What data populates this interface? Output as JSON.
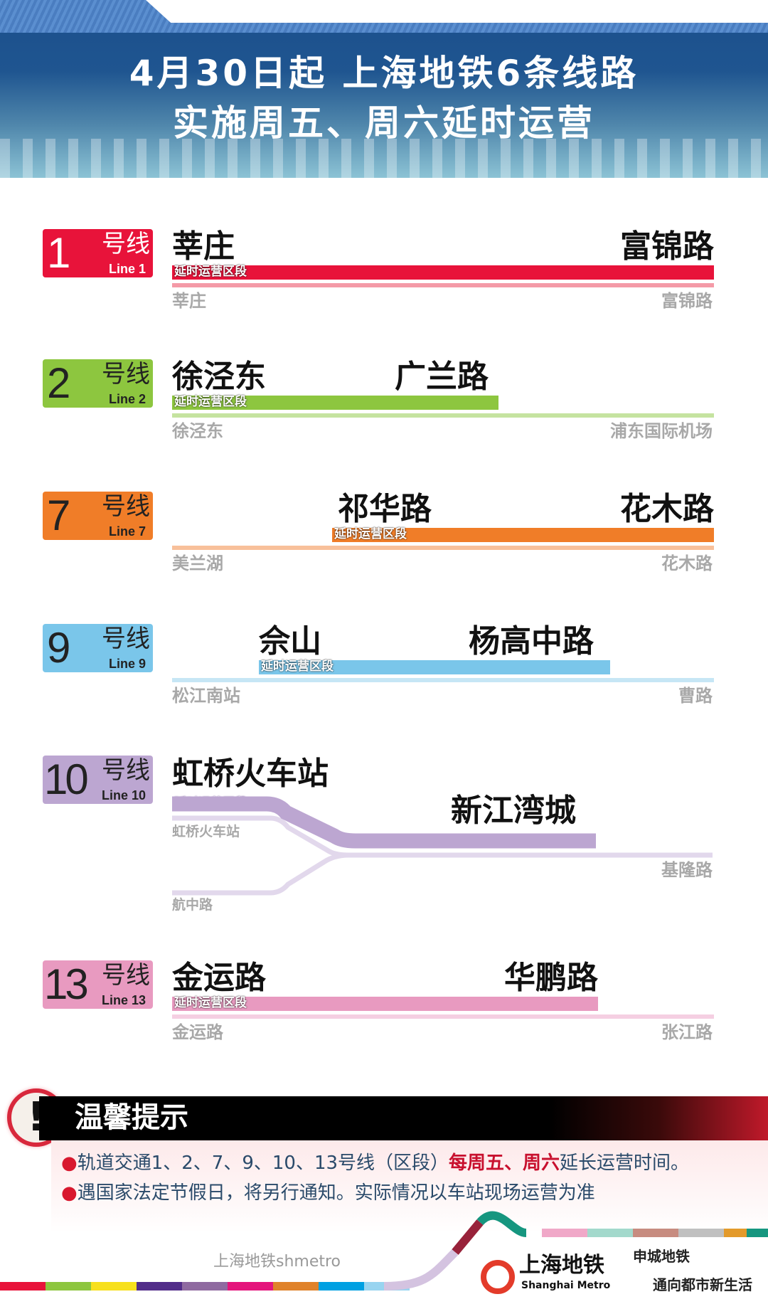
{
  "header": {
    "line1": "4月30日起  上海地铁6条线路",
    "line2": "实施周五、周六延时运营"
  },
  "section_label": "延时运营区段",
  "lines": [
    {
      "num": "1",
      "hx": "号线",
      "en": "Line 1",
      "color": "#e8133a",
      "light": "#f49aa7",
      "from": "莘庄",
      "to": "富锦路",
      "end_a": "莘庄",
      "end_b": "富锦路"
    },
    {
      "num": "2",
      "hx": "号线",
      "en": "Line 2",
      "color": "#8dc63f",
      "light": "#c5e3a0",
      "from": "徐泾东",
      "to": "广兰路",
      "end_a": "徐泾东",
      "end_b": "浦东国际机场"
    },
    {
      "num": "7",
      "hx": "号线",
      "en": "Line 7",
      "color": "#f07d28",
      "light": "#f8c09a",
      "from": "祁华路",
      "to": "花木路",
      "end_a": "美兰湖",
      "end_b": "花木路"
    },
    {
      "num": "9",
      "hx": "号线",
      "en": "Line 9",
      "color": "#7ac6ea",
      "light": "#c6e6f5",
      "from": "佘山",
      "to": "杨高中路",
      "end_a": "松江南站",
      "end_b": "曹路"
    },
    {
      "num": "10",
      "hx": "号线",
      "en": "Line 10",
      "color": "#bca6d1",
      "light": "#e2d8ec",
      "from": "虹桥火车站",
      "to": "新江湾城",
      "end_a": "虹桥火车站",
      "end_b": "基隆路",
      "end_c": "航中路"
    },
    {
      "num": "13",
      "hx": "号线",
      "en": "Line 13",
      "color": "#e89ac0",
      "light": "#f5cfe2",
      "from": "金运路",
      "to": "华鹏路",
      "end_a": "金运路",
      "end_b": "张江路"
    }
  ],
  "tips": {
    "title": "温馨提示",
    "t1a": "轨道交通1、2、7、9、10、13号线（区段）",
    "t1b": "每周五、周六",
    "t1c": "延长运营时间。",
    "t2": "遇国家法定节假日，将另行通知。实际情况以车站现场运营为准"
  },
  "footer": {
    "logo_cn": "上海地铁",
    "logo_en": "Shanghai Metro",
    "slogan1": "申城地铁",
    "slogan2": "通向都市新生活",
    "watermark": "上海地铁shmetro"
  }
}
